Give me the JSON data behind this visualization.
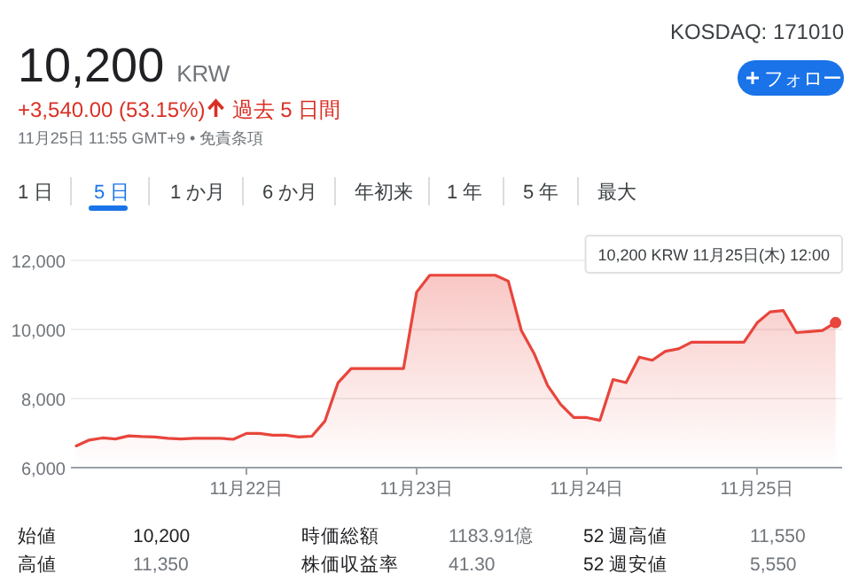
{
  "chart_data": {
    "type": "area",
    "categories": [
      null,
      null,
      null,
      null,
      null,
      null,
      null,
      null,
      null,
      null,
      null,
      null,
      null,
      "11月22日",
      null,
      null,
      null,
      null,
      null,
      null,
      null,
      null,
      null,
      null,
      null,
      null,
      "11月23日",
      null,
      null,
      null,
      null,
      null,
      null,
      null,
      null,
      null,
      null,
      null,
      null,
      "11月24日",
      null,
      null,
      null,
      null,
      null,
      null,
      null,
      null,
      null,
      null,
      null,
      null,
      "11月25日",
      null,
      null,
      null,
      null,
      null,
      null
    ],
    "series": [
      {
        "color": "#e8453c",
        "values": [
          6630,
          6800,
          6860,
          6830,
          6920,
          6900,
          6890,
          6850,
          6830,
          6850,
          6850,
          6850,
          6820,
          6990,
          6990,
          6940,
          6940,
          6890,
          6910,
          7350,
          8460,
          8870,
          8870,
          8870,
          8870,
          8870,
          11080,
          11570,
          11570,
          11570,
          11570,
          11570,
          11570,
          11400,
          9970,
          9280,
          8380,
          7830,
          7450,
          7450,
          7370,
          8550,
          8460,
          9200,
          9110,
          9370,
          9440,
          9630,
          9630,
          9630,
          9630,
          9630,
          10190,
          10510,
          10550,
          9910,
          9940,
          9970,
          10200
        ]
      }
    ],
    "ylim": [
      6000,
      12000
    ],
    "yticks": [
      {
        "value": 6000,
        "label": "6,000"
      },
      {
        "value": 8000,
        "label": "8,000"
      },
      {
        "value": 10000,
        "label": "10,000"
      },
      {
        "value": 12000,
        "label": "12,000"
      }
    ],
    "grid": "y",
    "marker": "none",
    "line_style": "solid",
    "annotations": [
      "10,200",
      "KRW",
      "KOSDAQ: 171010",
      "+3,540.00 (53.15%)",
      "過去 5 日間",
      "11月25日 11:55 GMT+9 • 免責条項",
      "フォロー",
      "1 日",
      "5 日",
      "1 か月",
      "6 か月",
      "年初来",
      "1 年",
      "5 年",
      "最大",
      "10,200 KRW  11月25日(木) 12:00",
      "始値",
      "10,200",
      "時価総額",
      "1183.91億",
      "52 週高値",
      "11,550",
      "高値",
      "11,350",
      "株価収益率",
      "41.30",
      "52 週安値",
      "5,550"
    ]
  }
}
